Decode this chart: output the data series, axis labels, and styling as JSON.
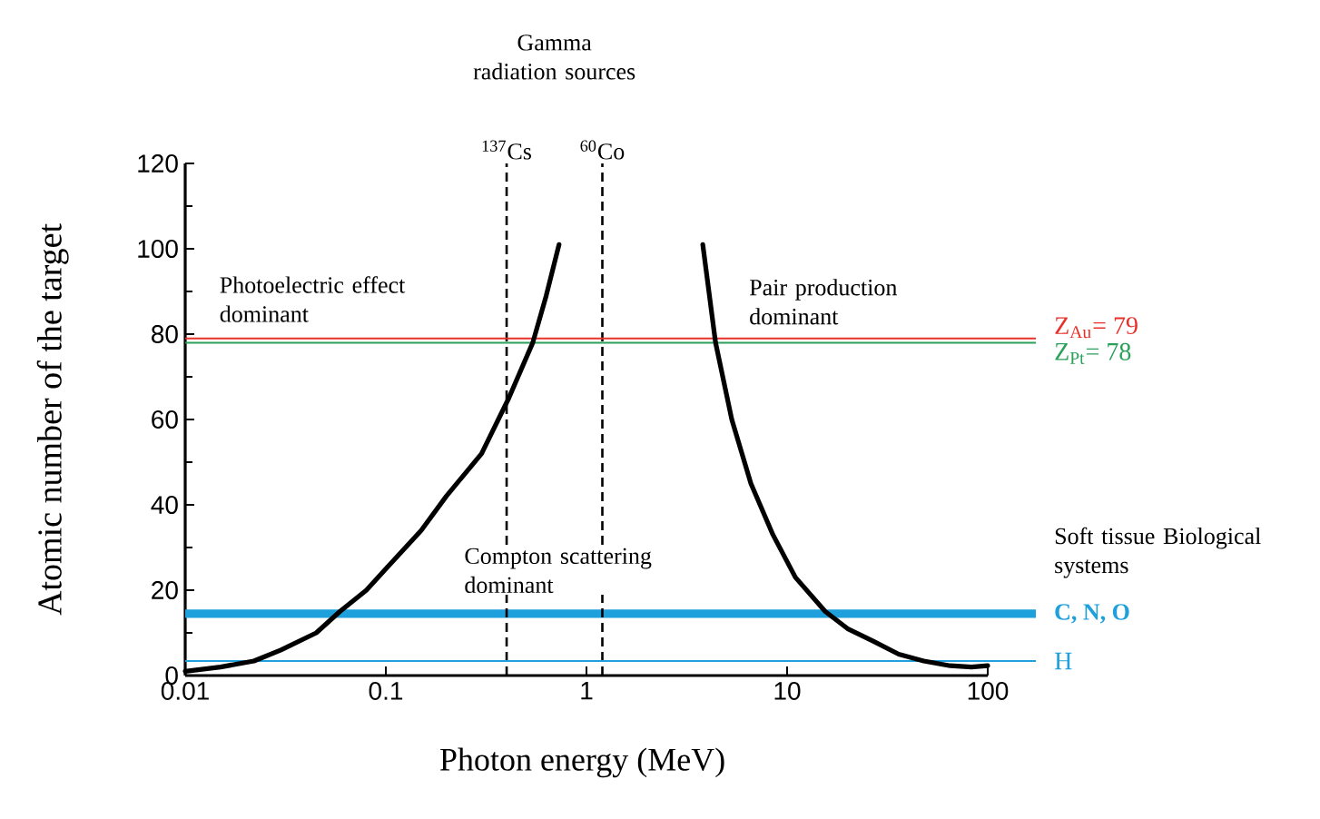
{
  "chart_data": {
    "type": "line",
    "title": "Gamma radiation sources",
    "xlabel": "Photon energy (MeV)",
    "ylabel": "Atomic number of the target",
    "log": "x",
    "xlim": [
      0.01,
      100
    ],
    "ylim": [
      0,
      120
    ],
    "xticks": [
      0.01,
      0.1,
      1,
      10,
      100
    ],
    "yticks": [
      0,
      20,
      40,
      60,
      80,
      100,
      120
    ],
    "marker": "none",
    "line_style": "solid",
    "series": [
      {
        "color": "#000000",
        "x": [
          0.01,
          0.015,
          0.022,
          0.03,
          0.045,
          0.059,
          0.08,
          0.1,
          0.15,
          0.2,
          0.3,
          0.41,
          0.54,
          0.63,
          0.73
        ],
        "values": [
          1,
          2,
          3.4,
          6,
          10,
          15,
          20,
          25,
          34,
          42,
          52,
          65,
          78,
          89,
          101
        ]
      },
      {
        "color": "#000000",
        "x": [
          3.8,
          4.4,
          5.3,
          6.6,
          8.5,
          11,
          15.5,
          20,
          27,
          36,
          48,
          65,
          83,
          100
        ],
        "values": [
          101,
          78,
          60,
          45,
          33,
          23,
          15,
          11,
          8,
          5,
          3.4,
          2.3,
          2,
          2.3
        ]
      }
    ],
    "ref_lines": [
      {
        "axis": "x",
        "value": 0.4,
        "label": "$^{137}$Cs",
        "color": "#000000",
        "line_style": "dashed"
      },
      {
        "axis": "x",
        "value": 1.2,
        "label": "$^{60}$Co",
        "color": "#000000",
        "line_style": "dashed"
      },
      {
        "axis": "y",
        "value": 79,
        "label": "Z$_{Au}$= 79",
        "color": "#e8302a",
        "line_style": "solid"
      },
      {
        "axis": "y",
        "value": 78,
        "label": "Z$_{Pt}$= 78",
        "color": "#2aa05a",
        "line_style": "solid"
      },
      {
        "axis": "y",
        "value": 3.4,
        "label": "H",
        "color": "#1ea0dc",
        "line_style": "solid"
      }
    ],
    "bands": [
      {
        "axis": "y",
        "from": 13.5,
        "to": 15.5,
        "label": "C, N, O",
        "color": "#1ea0dc"
      }
    ],
    "annotations": [
      "Photoelectric effect dominant",
      "Compton scattering dominant",
      "Pair production dominant",
      "Soft tissue Biological systems"
    ]
  }
}
